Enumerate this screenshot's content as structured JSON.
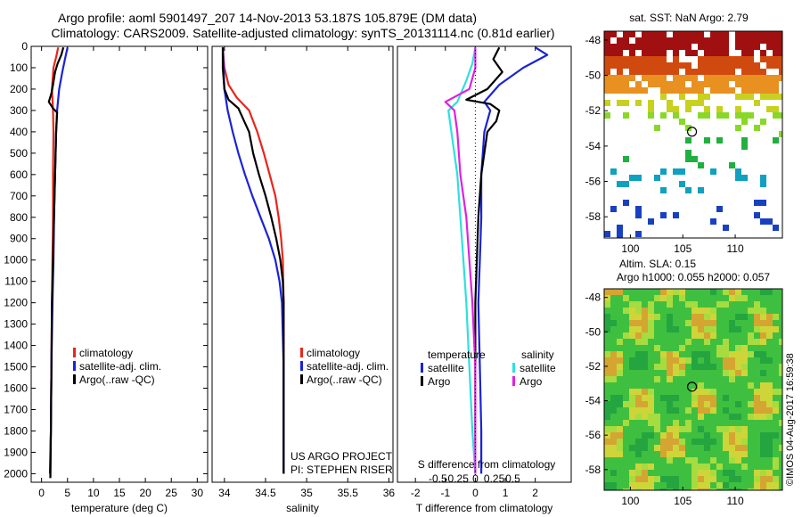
{
  "header": {
    "line1": "Argo profile: aoml 5901497_207 14-Nov-2013 53.187S 105.879E (DM data)",
    "line2": "Climatology: CARS2009. Satellite-adjusted climatology: synTS_20131114.nc (0.81d earlier)"
  },
  "colors": {
    "climatology": "#e8261b",
    "satellite": "#1a23d6",
    "argo": "#000000",
    "argo_salinity": "#e020e0",
    "satellite_salinity": "#2de0e0"
  },
  "chart_data": [
    {
      "type": "line",
      "id": "temperature-profile",
      "xlabel": "temperature (deg C)",
      "ylabel": "",
      "xlim": [
        -2,
        32
      ],
      "ylim": [
        2040,
        0
      ],
      "xticks": [
        0,
        5,
        10,
        15,
        20,
        25,
        30
      ],
      "yticks": [
        0,
        100,
        200,
        300,
        400,
        500,
        600,
        700,
        800,
        900,
        1000,
        1100,
        1200,
        1300,
        1400,
        1500,
        1600,
        1700,
        1800,
        1900,
        2000
      ],
      "legend": [
        "climatology",
        "satellite-adj. clim.",
        "Argo(..raw -QC)"
      ],
      "series": [
        {
          "name": "climatology",
          "points": [
            [
              3.2,
              5
            ],
            [
              2.8,
              50
            ],
            [
              2.3,
              100
            ],
            [
              2.0,
              200
            ],
            [
              2.2,
              300
            ],
            [
              2.3,
              400
            ],
            [
              2.2,
              600
            ],
            [
              2.2,
              800
            ],
            [
              2.1,
              1000
            ],
            [
              2.0,
              1200
            ],
            [
              1.9,
              1500
            ],
            [
              1.8,
              1800
            ],
            [
              1.7,
              2020
            ]
          ]
        },
        {
          "name": "satellite-adj. clim.",
          "points": [
            [
              5.0,
              5
            ],
            [
              4.6,
              50
            ],
            [
              4.0,
              120
            ],
            [
              3.4,
              200
            ],
            [
              3.0,
              300
            ],
            [
              2.8,
              400
            ],
            [
              2.6,
              600
            ],
            [
              2.4,
              800
            ],
            [
              2.3,
              1000
            ],
            [
              2.1,
              1200
            ],
            [
              1.9,
              1500
            ],
            [
              1.8,
              1800
            ],
            [
              1.6,
              2000
            ]
          ]
        },
        {
          "name": "Argo(..raw -QC)",
          "points": [
            [
              4.2,
              5
            ],
            [
              3.8,
              40
            ],
            [
              3.1,
              80
            ],
            [
              2.6,
              120
            ],
            [
              2.2,
              180
            ],
            [
              1.9,
              220
            ],
            [
              1.4,
              260
            ],
            [
              2.2,
              290
            ],
            [
              3.0,
              310
            ],
            [
              2.8,
              400
            ],
            [
              2.6,
              600
            ],
            [
              2.4,
              800
            ],
            [
              2.2,
              1000
            ],
            [
              2.0,
              1200
            ],
            [
              1.9,
              1500
            ],
            [
              1.8,
              1800
            ],
            [
              1.7,
              2020
            ]
          ]
        }
      ]
    },
    {
      "type": "line",
      "id": "salinity-profile",
      "xlabel": "salinity",
      "xlim": [
        33.85,
        36.05
      ],
      "ylim": [
        2040,
        0
      ],
      "xticks": [
        34,
        34.5,
        35,
        35.5,
        36
      ],
      "xticklabels": [
        "34",
        "34.5",
        "35",
        "35.5",
        "36"
      ],
      "legend": [
        "climatology",
        "satellite-adj. clim.",
        "Argo(..raw -QC)"
      ],
      "annotations": [
        "US ARGO PROJECT",
        "PI: STEPHEN RISER"
      ],
      "series": [
        {
          "name": "climatology",
          "points": [
            [
              33.98,
              5
            ],
            [
              34.0,
              100
            ],
            [
              34.05,
              180
            ],
            [
              34.15,
              240
            ],
            [
              34.3,
              300
            ],
            [
              34.4,
              400
            ],
            [
              34.48,
              500
            ],
            [
              34.55,
              600
            ],
            [
              34.62,
              700
            ],
            [
              34.66,
              800
            ],
            [
              34.69,
              900
            ],
            [
              34.71,
              1000
            ],
            [
              34.72,
              1200
            ],
            [
              34.72,
              1500
            ],
            [
              34.72,
              2000
            ]
          ]
        },
        {
          "name": "satellite-adj. clim.",
          "points": [
            [
              33.98,
              5
            ],
            [
              33.99,
              100
            ],
            [
              34.0,
              200
            ],
            [
              34.04,
              300
            ],
            [
              34.1,
              400
            ],
            [
              34.17,
              500
            ],
            [
              34.25,
              600
            ],
            [
              34.34,
              700
            ],
            [
              34.44,
              800
            ],
            [
              34.54,
              900
            ],
            [
              34.62,
              1000
            ],
            [
              34.67,
              1100
            ],
            [
              34.7,
              1200
            ],
            [
              34.72,
              1500
            ],
            [
              34.72,
              2000
            ]
          ]
        },
        {
          "name": "Argo(..raw -QC)",
          "points": [
            [
              33.98,
              5
            ],
            [
              33.98,
              100
            ],
            [
              34.0,
              200
            ],
            [
              34.05,
              250
            ],
            [
              34.17,
              290
            ],
            [
              34.24,
              350
            ],
            [
              34.3,
              400
            ],
            [
              34.35,
              500
            ],
            [
              34.42,
              600
            ],
            [
              34.5,
              700
            ],
            [
              34.57,
              800
            ],
            [
              34.63,
              900
            ],
            [
              34.68,
              1000
            ],
            [
              34.71,
              1100
            ],
            [
              34.72,
              1200
            ],
            [
              34.72,
              1500
            ],
            [
              34.72,
              2000
            ]
          ]
        }
      ]
    },
    {
      "type": "line",
      "id": "difference-profile",
      "xlabel": "T difference from climatology",
      "xlabel_top": "S difference from climatology",
      "xlim": [
        -2.6,
        3.2
      ],
      "ylim": [
        2040,
        0
      ],
      "xticks": [
        -2,
        -1,
        0,
        1,
        2
      ],
      "xticklabels": [
        "-2",
        "-1",
        "0",
        "1",
        "2"
      ],
      "s_xticks": [
        -1.25,
        -0.63,
        0,
        0.63,
        1.25
      ],
      "s_xticklabels": [
        "-0.5",
        "-0.25",
        "0",
        "0.25",
        "0.5"
      ],
      "legend_temperature": {
        "title": "temperature",
        "items": [
          "satellite",
          "Argo"
        ]
      },
      "legend_salinity": {
        "title": "salinity",
        "items": [
          "satellite",
          "Argo"
        ]
      },
      "series": [
        {
          "name": "T satellite",
          "points": [
            [
              2.0,
              5
            ],
            [
              2.4,
              40
            ],
            [
              1.6,
              100
            ],
            [
              0.8,
              180
            ],
            [
              0.3,
              260
            ],
            [
              0.5,
              300
            ],
            [
              0.3,
              400
            ],
            [
              0.2,
              600
            ],
            [
              0.2,
              800
            ],
            [
              0.15,
              1000
            ],
            [
              0.1,
              1200
            ],
            [
              0.15,
              1500
            ],
            [
              0.2,
              1800
            ],
            [
              0.2,
              2000
            ]
          ]
        },
        {
          "name": "T Argo",
          "points": [
            [
              0.8,
              5
            ],
            [
              0.6,
              60
            ],
            [
              0.9,
              120
            ],
            [
              0.4,
              200
            ],
            [
              -0.3,
              250
            ],
            [
              0.5,
              270
            ],
            [
              0.8,
              300
            ],
            [
              0.7,
              350
            ],
            [
              0.4,
              400
            ],
            [
              0.2,
              600
            ],
            [
              0.1,
              800
            ],
            [
              0.05,
              1000
            ],
            [
              0.0,
              1200
            ],
            [
              0.0,
              1500
            ],
            [
              0.0,
              2000
            ]
          ]
        },
        {
          "name": "S satellite",
          "points": [
            [
              0.0,
              5
            ],
            [
              -0.1,
              80
            ],
            [
              -0.3,
              160
            ],
            [
              -0.6,
              260
            ],
            [
              -0.9,
              300
            ],
            [
              -0.8,
              400
            ],
            [
              -0.6,
              600
            ],
            [
              -0.5,
              800
            ],
            [
              -0.4,
              1000
            ],
            [
              -0.3,
              1200
            ],
            [
              -0.2,
              1500
            ],
            [
              -0.1,
              1800
            ],
            [
              0.0,
              2000
            ]
          ]
        },
        {
          "name": "S Argo",
          "points": [
            [
              0.0,
              5
            ],
            [
              0.0,
              100
            ],
            [
              -0.2,
              200
            ],
            [
              -1.0,
              260
            ],
            [
              -0.7,
              300
            ],
            [
              -0.6,
              400
            ],
            [
              -0.5,
              600
            ],
            [
              -0.3,
              800
            ],
            [
              -0.2,
              1000
            ],
            [
              -0.1,
              1200
            ],
            [
              0.0,
              1500
            ],
            [
              0.0,
              2000
            ]
          ]
        }
      ]
    },
    {
      "type": "heatmap",
      "id": "sst-map",
      "title": "sat. SST: NaN Argo: 2.79",
      "xlim": [
        97.5,
        114.5
      ],
      "ylim": [
        -59.2,
        -47.5
      ],
      "xticks": [
        100,
        105,
        110
      ],
      "yticks": [
        -48,
        -50,
        -52,
        -54,
        -56,
        -58
      ],
      "marker": {
        "lon": 105.879,
        "lat": -53.187
      }
    },
    {
      "type": "heatmap",
      "id": "sla-map",
      "title": "Altim. SLA: 0.15",
      "subtitle": "Argo h1000: 0.055 h2000: 0.057",
      "xlim": [
        97.5,
        114.5
      ],
      "ylim": [
        -59.2,
        -47.5
      ],
      "xticks": [
        100,
        105,
        110
      ],
      "yticks": [
        -48,
        -50,
        -52,
        -54,
        -56,
        -58
      ],
      "marker": {
        "lon": 105.879,
        "lat": -53.187
      },
      "side_label": "©IMOS 04-Aug-2017 16:59:38"
    }
  ]
}
